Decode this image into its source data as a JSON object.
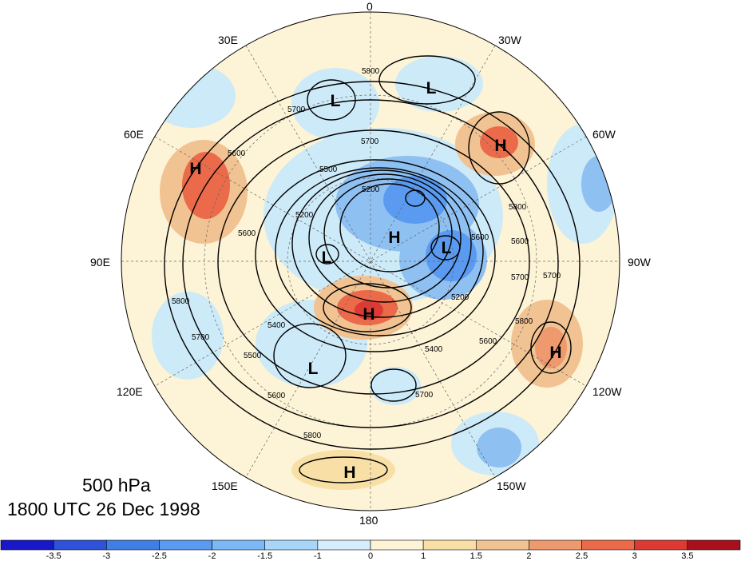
{
  "map": {
    "level_label": "500 hPa",
    "time_label": "1800 UTC 26 Dec 1998",
    "longitude_labels": {
      "top": "0",
      "bottom": "180",
      "upper_left": "30E",
      "upper_right": "30W",
      "left_upper": "60E",
      "right_upper": "60W",
      "left": "90E",
      "right": "90W",
      "left_lower": "120E",
      "right_lower": "120W",
      "lower_left": "150E",
      "lower_right": "150W"
    },
    "centers": [
      {
        "type": "H",
        "name": "anomaly-high-siberia-west"
      },
      {
        "type": "L",
        "name": "low-scandinavia"
      },
      {
        "type": "L",
        "name": "low-north-atlantic"
      },
      {
        "type": "H",
        "name": "high-atlantic-east"
      },
      {
        "type": "H",
        "name": "high-polar"
      },
      {
        "type": "L",
        "name": "low-canada"
      },
      {
        "type": "L",
        "name": "low-central-siberia"
      },
      {
        "type": "H",
        "name": "high-east-siberia"
      },
      {
        "type": "L",
        "name": "low-okhotsk"
      },
      {
        "type": "H",
        "name": "high-north-america"
      },
      {
        "type": "H",
        "name": "high-pacific"
      }
    ],
    "contour_labels": [
      "5800",
      "5700",
      "5700",
      "5600",
      "5500",
      "5200",
      "5200",
      "5600",
      "5800",
      "5600",
      "5700",
      "5800",
      "5700",
      "5400",
      "5800",
      "5600",
      "5500",
      "5400",
      "5600",
      "5700",
      "5800",
      "5700",
      "5200",
      "5600"
    ],
    "colors": {
      "strong_negative": "#3a78e6",
      "negative": "#8fc0f2",
      "weak_negative": "#cdeaf8",
      "weak_positive": "#fdf3d6",
      "positive": "#f2c392",
      "strong_positive": "#ea6a4a"
    }
  },
  "colorbar": {
    "ticks": [
      "-3.5",
      "-3",
      "-2.5",
      "-2",
      "-1.5",
      "-1",
      "0",
      "1",
      "1.5",
      "2",
      "2.5",
      "3",
      "3.5"
    ],
    "colors": [
      "#1818c8",
      "#2e52d8",
      "#3f7ee6",
      "#5a9af0",
      "#7cb7f6",
      "#a7d6f8",
      "#d6eefb",
      "#fdf3d6",
      "#f8dfa6",
      "#f2c392",
      "#ee9a6e",
      "#ea6a4a",
      "#dc3a32",
      "#a8101c"
    ]
  }
}
